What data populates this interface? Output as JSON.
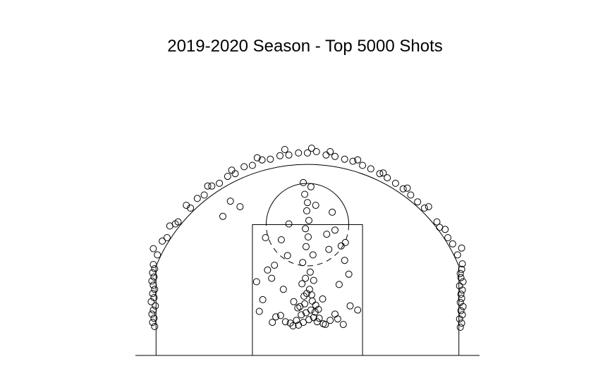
{
  "chart_data": {
    "type": "scatter",
    "title": "2019-2020 Season - Top 5000 Shots",
    "xlabel": "",
    "ylabel": "",
    "xlim": [
      -25,
      25
    ],
    "ylim": [
      -4,
      30
    ],
    "axes_visible": false,
    "grid": false,
    "marker": "open-circle",
    "point_color": "#000000",
    "court_line_color": "#000000",
    "court": {
      "baseline": {
        "x": [
          -25,
          25
        ],
        "y": -4
      },
      "paint": {
        "x": [
          -8,
          8
        ],
        "y": [
          -4,
          15
        ]
      },
      "free_throw_circle": {
        "x": 0,
        "y": 15,
        "r": 6
      },
      "corner_three_lines": [
        {
          "x": -22,
          "y": [
            -4,
            9
          ]
        },
        {
          "x": 22,
          "y": [
            -4,
            9
          ]
        }
      ],
      "three_point_arc": {
        "x": 0,
        "y": 0,
        "r": 23.75
      }
    },
    "series": [
      {
        "x": [
          0.2,
          -0.6,
          0.9,
          -1.3,
          1.4,
          -2.1,
          2.3,
          -0.2,
          0.5,
          -0.9,
          1.1,
          -1.6,
          1.7,
          -2.5,
          2.6,
          -3.2,
          3.3,
          -0.4,
          0.7,
          -1.1,
          1.2,
          -0.1,
          0.3,
          -0.5,
          0.6,
          -3.9,
          4.0,
          -4.6,
          4.4,
          -5.1,
          5.2,
          -0.3,
          0.4,
          -0.8,
          0.9,
          -1.4,
          1.6,
          -2.0,
          2.2,
          -0.7,
          0.8,
          -0.2,
          0.1,
          -0.3,
          0.2,
          -0.1,
          0.0,
          -0.4,
          0.5,
          -0.6
        ],
        "y": [
          1.2,
          0.8,
          1.5,
          0.4,
          0.9,
          0.3,
          0.6,
          2.2,
          2.6,
          1.9,
          2.3,
          1.1,
          1.4,
          0.7,
          0.5,
          0.9,
          1.1,
          3.5,
          3.9,
          3.1,
          3.3,
          5.0,
          5.6,
          4.6,
          4.8,
          1.8,
          2.0,
          1.6,
          1.3,
          0.8,
          0.5,
          7.2,
          8.1,
          6.4,
          6.9,
          2.9,
          2.7,
          3.8,
          4.2,
          9.5,
          10.6,
          11.8,
          13.2,
          14.4,
          15.6,
          17.0,
          18.2,
          19.4,
          20.5,
          21.1
        ]
      },
      {
        "x": [
          -3.5,
          4.6,
          -5.2,
          6.0,
          -4.8,
          5.4,
          -2.9,
          3.1,
          -6.5,
          6.2,
          -7.0,
          7.3,
          -3.8,
          2.8,
          -5.8,
          4.9,
          -7.4,
          -9.8,
          -11.2,
          -12.3,
          1.2,
          4.0,
          -2.7,
          3.6,
          5.5,
          -6.1
        ],
        "y": [
          5.6,
          6.3,
          7.2,
          7.8,
          9.1,
          9.8,
          10.5,
          11.4,
          4.1,
          3.2,
          2.4,
          2.6,
          12.8,
          13.6,
          8.4,
          11.9,
          6.7,
          17.6,
          18.4,
          16.2,
          17.8,
          14.2,
          15.1,
          16.8,
          12.4,
          13.1
        ]
      },
      {
        "x": [
          -22.2,
          -22.5,
          -22.3,
          -22.6,
          -22.4,
          -22.1,
          -22.7,
          -22.3,
          -22.5,
          -22.2,
          -22.4,
          -22.6,
          -22.3,
          -22.5,
          -22.2,
          -22.4,
          22.2,
          22.4,
          22.1,
          22.5,
          22.3,
          22.6,
          22.2,
          22.4,
          22.3,
          22.5,
          22.1,
          22.6,
          22.3,
          22.2,
          22.4,
          22.5
        ],
        "y": [
          0.2,
          0.8,
          1.4,
          2.0,
          2.6,
          3.2,
          3.8,
          4.4,
          5.0,
          5.6,
          6.2,
          6.8,
          7.4,
          8.0,
          8.6,
          9.2,
          0.1,
          0.7,
          1.3,
          1.9,
          2.5,
          3.1,
          3.7,
          4.3,
          4.9,
          5.5,
          6.1,
          6.7,
          7.3,
          7.9,
          8.5,
          9.3
        ]
      },
      {
        "x": [
          -21.8,
          -20.4,
          -18.8,
          -17.0,
          -15.0,
          -12.8,
          -10.5,
          -8.0,
          -5.4,
          -2.7,
          0.0,
          2.7,
          5.4,
          8.0,
          10.5,
          12.8,
          15.0,
          17.0,
          18.8,
          20.4,
          21.8,
          -21.1,
          -19.2,
          -16.0,
          -13.9,
          -11.6,
          -9.2,
          -6.6,
          -4.0,
          -1.3,
          1.3,
          4.0,
          6.6,
          9.2,
          11.6,
          13.9,
          16.0,
          19.2,
          21.1,
          -20.0,
          -14.5,
          -7.3,
          0.6,
          7.3,
          14.5,
          20.0,
          -17.6,
          17.6,
          -11.0,
          11.0,
          -3.3,
          3.3,
          -22.4,
          22.4
        ],
        "y": [
          10.6,
          13.1,
          15.4,
          17.4,
          19.3,
          21.0,
          22.4,
          23.6,
          24.5,
          25.1,
          25.4,
          25.1,
          24.5,
          23.6,
          22.4,
          21.0,
          19.3,
          17.4,
          15.4,
          13.1,
          10.6,
          12.6,
          15.1,
          18.8,
          20.6,
          22.0,
          23.4,
          24.4,
          25.0,
          25.4,
          25.6,
          24.9,
          24.2,
          23.1,
          21.8,
          20.2,
          18.3,
          14.6,
          12.2,
          14.8,
          20.6,
          24.7,
          26.1,
          24.4,
          20.3,
          14.3,
          17.8,
          17.6,
          22.9,
          22.5,
          25.9,
          25.6,
          11.5,
          11.6
        ]
      }
    ]
  }
}
